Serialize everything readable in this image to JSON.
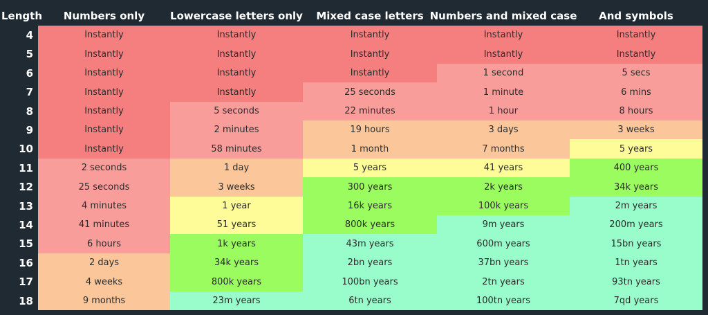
{
  "chart_data": {
    "type": "table",
    "columns": [
      "Length",
      "Numbers only",
      "Lowercase letters only",
      "Mixed case letters",
      "Numbers and mixed case",
      "And symbols"
    ],
    "rows": [
      {
        "length": "4",
        "cells": [
          {
            "text": "Instantly",
            "level": 0
          },
          {
            "text": "Instantly",
            "level": 0
          },
          {
            "text": "Instantly",
            "level": 0
          },
          {
            "text": "Instantly",
            "level": 0
          },
          {
            "text": "Instantly",
            "level": 0
          }
        ]
      },
      {
        "length": "5",
        "cells": [
          {
            "text": "Instantly",
            "level": 0
          },
          {
            "text": "Instantly",
            "level": 0
          },
          {
            "text": "Instantly",
            "level": 0
          },
          {
            "text": "Instantly",
            "level": 0
          },
          {
            "text": "Instantly",
            "level": 0
          }
        ]
      },
      {
        "length": "6",
        "cells": [
          {
            "text": "Instantly",
            "level": 0
          },
          {
            "text": "Instantly",
            "level": 0
          },
          {
            "text": "Instantly",
            "level": 0
          },
          {
            "text": "1 second",
            "level": 1
          },
          {
            "text": "5 secs",
            "level": 1
          }
        ]
      },
      {
        "length": "7",
        "cells": [
          {
            "text": "Instantly",
            "level": 0
          },
          {
            "text": "Instantly",
            "level": 0
          },
          {
            "text": "25 seconds",
            "level": 1
          },
          {
            "text": "1 minute",
            "level": 1
          },
          {
            "text": "6 mins",
            "level": 1
          }
        ]
      },
      {
        "length": "8",
        "cells": [
          {
            "text": "Instantly",
            "level": 0
          },
          {
            "text": "5 seconds",
            "level": 1
          },
          {
            "text": "22 minutes",
            "level": 1
          },
          {
            "text": "1 hour",
            "level": 1
          },
          {
            "text": "8 hours",
            "level": 1
          }
        ]
      },
      {
        "length": "9",
        "cells": [
          {
            "text": "Instantly",
            "level": 0
          },
          {
            "text": "2 minutes",
            "level": 1
          },
          {
            "text": "19 hours",
            "level": 2
          },
          {
            "text": "3 days",
            "level": 2
          },
          {
            "text": "3 weeks",
            "level": 2
          }
        ]
      },
      {
        "length": "10",
        "cells": [
          {
            "text": "Instantly",
            "level": 0
          },
          {
            "text": "58 minutes",
            "level": 1
          },
          {
            "text": "1 month",
            "level": 2
          },
          {
            "text": "7 months",
            "level": 2
          },
          {
            "text": "5 years",
            "level": 3
          }
        ]
      },
      {
        "length": "11",
        "cells": [
          {
            "text": "2 seconds",
            "level": 1
          },
          {
            "text": "1 day",
            "level": 2
          },
          {
            "text": "5 years",
            "level": 3
          },
          {
            "text": "41 years",
            "level": 3
          },
          {
            "text": "400 years",
            "level": 4
          }
        ]
      },
      {
        "length": "12",
        "cells": [
          {
            "text": "25 seconds",
            "level": 1
          },
          {
            "text": "3 weeks",
            "level": 2
          },
          {
            "text": "300 years",
            "level": 4
          },
          {
            "text": "2k years",
            "level": 4
          },
          {
            "text": "34k years",
            "level": 4
          }
        ]
      },
      {
        "length": "13",
        "cells": [
          {
            "text": "4 minutes",
            "level": 1
          },
          {
            "text": "1 year",
            "level": 3
          },
          {
            "text": "16k years",
            "level": 4
          },
          {
            "text": "100k years",
            "level": 4
          },
          {
            "text": "2m years",
            "level": 5
          }
        ]
      },
      {
        "length": "14",
        "cells": [
          {
            "text": "41 minutes",
            "level": 1
          },
          {
            "text": "51 years",
            "level": 3
          },
          {
            "text": "800k years",
            "level": 4
          },
          {
            "text": "9m years",
            "level": 5
          },
          {
            "text": "200m years",
            "level": 5
          }
        ]
      },
      {
        "length": "15",
        "cells": [
          {
            "text": "6 hours",
            "level": 1
          },
          {
            "text": "1k years",
            "level": 4
          },
          {
            "text": "43m years",
            "level": 5
          },
          {
            "text": "600m years",
            "level": 5
          },
          {
            "text": "15bn years",
            "level": 5
          }
        ]
      },
      {
        "length": "16",
        "cells": [
          {
            "text": "2 days",
            "level": 2
          },
          {
            "text": "34k years",
            "level": 4
          },
          {
            "text": "2bn years",
            "level": 5
          },
          {
            "text": "37bn years",
            "level": 5
          },
          {
            "text": "1tn years",
            "level": 5
          }
        ]
      },
      {
        "length": "17",
        "cells": [
          {
            "text": "4 weeks",
            "level": 2
          },
          {
            "text": "800k years",
            "level": 4
          },
          {
            "text": "100bn years",
            "level": 5
          },
          {
            "text": "2tn years",
            "level": 5
          },
          {
            "text": "93tn years",
            "level": 5
          }
        ]
      },
      {
        "length": "18",
        "cells": [
          {
            "text": "9 months",
            "level": 2
          },
          {
            "text": "23m years",
            "level": 5
          },
          {
            "text": "6tn years",
            "level": 5
          },
          {
            "text": "100tn years",
            "level": 5
          },
          {
            "text": "7qd years",
            "level": 5
          }
        ]
      }
    ],
    "level_colors": [
      "#f57f7f",
      "#f99d9a",
      "#fbc79a",
      "#fdfc99",
      "#9afc5f",
      "#99fccb"
    ],
    "background_color": "#1f2a33",
    "header_text_color": "#ffffff"
  }
}
